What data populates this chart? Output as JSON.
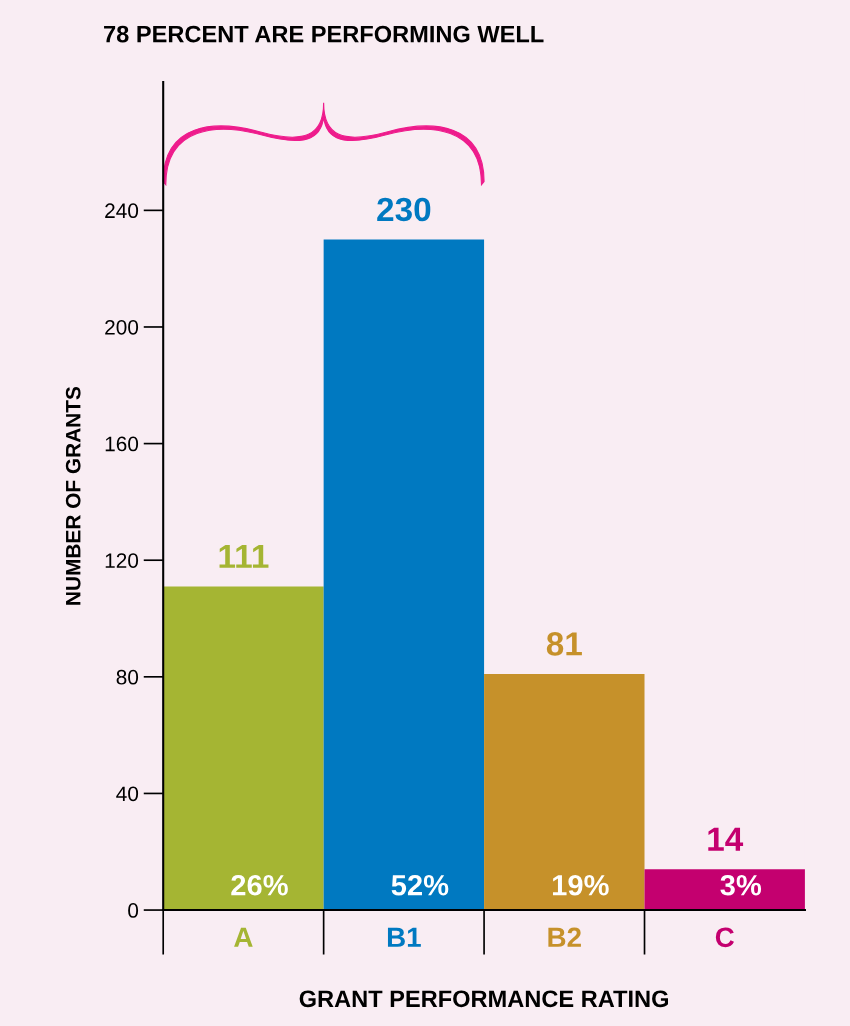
{
  "chart_data": {
    "type": "bar",
    "xlabel": "GRANT PERFORMANCE RATING",
    "ylabel": "NUMBER OF GRANTS",
    "categories": [
      "A",
      "B1",
      "B2",
      "C"
    ],
    "values": [
      111,
      230,
      81,
      14
    ],
    "colors": [
      "#a5b533",
      "#0079c1",
      "#c6912a",
      "#c4006f"
    ],
    "data_labels": true,
    "ylim": [
      0,
      284
    ],
    "yticks": [
      0,
      40,
      80,
      120,
      160,
      200,
      240
    ],
    "grid": false,
    "annotations": [
      "78 PERCENT ARE PERFORMING WELL",
      {
        "text": "26%",
        "x": "A",
        "y": 0
      },
      {
        "text": "52%",
        "x": "B1",
        "y": 0
      },
      {
        "text": "19%",
        "x": "B2",
        "y": 0
      },
      {
        "text": "3%",
        "x": "C",
        "y": 0
      }
    ]
  }
}
